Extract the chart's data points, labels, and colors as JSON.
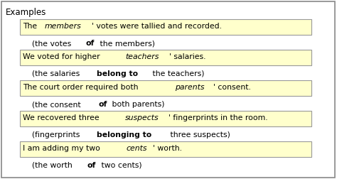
{
  "title": "Examples",
  "background_color": "#ffffff",
  "border_color": "#888888",
  "box_bg_color": "#ffffcc",
  "box_border_color": "#999999",
  "entries": [
    {
      "box_text_parts": [
        {
          "text": "The ",
          "style": "normal"
        },
        {
          "text": "members",
          "style": "italic"
        },
        {
          "text": "' votes were tallied and recorded.",
          "style": "normal"
        }
      ],
      "sub_text_parts": [
        {
          "text": "(the votes ",
          "style": "normal"
        },
        {
          "text": "of",
          "style": "bold"
        },
        {
          "text": " the members)",
          "style": "normal"
        }
      ]
    },
    {
      "box_text_parts": [
        {
          "text": "We voted for higher ",
          "style": "normal"
        },
        {
          "text": "teachers",
          "style": "italic"
        },
        {
          "text": "' salaries.",
          "style": "normal"
        }
      ],
      "sub_text_parts": [
        {
          "text": "(the salaries ",
          "style": "normal"
        },
        {
          "text": "belong to",
          "style": "bold"
        },
        {
          "text": " the teachers)",
          "style": "normal"
        }
      ]
    },
    {
      "box_text_parts": [
        {
          "text": "The court order required both ",
          "style": "normal"
        },
        {
          "text": "parents",
          "style": "italic"
        },
        {
          "text": "' consent.",
          "style": "normal"
        }
      ],
      "sub_text_parts": [
        {
          "text": "(the consent ",
          "style": "normal"
        },
        {
          "text": "of",
          "style": "bold"
        },
        {
          "text": " both parents)",
          "style": "normal"
        }
      ]
    },
    {
      "box_text_parts": [
        {
          "text": "We recovered three ",
          "style": "normal"
        },
        {
          "text": "suspects",
          "style": "italic"
        },
        {
          "text": "' fingerprints in the room.",
          "style": "normal"
        }
      ],
      "sub_text_parts": [
        {
          "text": "(fingerprints ",
          "style": "normal"
        },
        {
          "text": "belonging to",
          "style": "bold"
        },
        {
          "text": " three suspects)",
          "style": "normal"
        }
      ]
    },
    {
      "box_text_parts": [
        {
          "text": "I am adding my two ",
          "style": "normal"
        },
        {
          "text": "cents",
          "style": "italic"
        },
        {
          "text": "' worth.",
          "style": "normal"
        }
      ],
      "sub_text_parts": [
        {
          "text": "(the worth ",
          "style": "normal"
        },
        {
          "text": "of",
          "style": "bold"
        },
        {
          "text": " two cents)",
          "style": "normal"
        }
      ]
    }
  ]
}
